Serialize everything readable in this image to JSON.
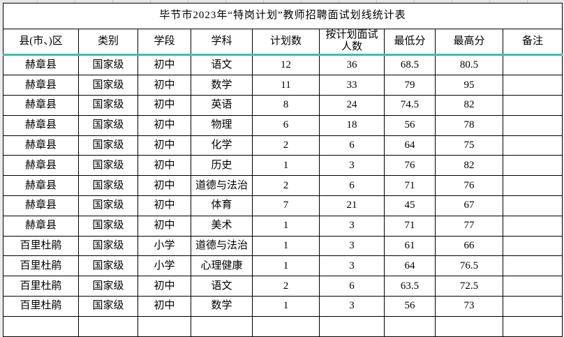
{
  "title": "毕节市2023年“特岗计划”教师招聘面试划线统计表",
  "colors": {
    "accent_teal": "#3FBDAE",
    "grid_border": "#000000",
    "cell_background": "#FFFFFF",
    "margin_background": "#ECECEC"
  },
  "table": {
    "header_keys": [
      "county",
      "category",
      "stage",
      "subject",
      "plan-count",
      "planned-interviewees",
      "min-score",
      "max-score",
      "remark"
    ],
    "headers": [
      "县(市、)区",
      "类别",
      "学段",
      "学科",
      "计划数",
      "按计划面试人数",
      "最低分",
      "最高分",
      "备注"
    ],
    "rows": [
      [
        "赫章县",
        "国家级",
        "初中",
        "语文",
        "12",
        "36",
        "68.5",
        "80.5",
        ""
      ],
      [
        "赫章县",
        "国家级",
        "初中",
        "数学",
        "11",
        "33",
        "79",
        "95",
        ""
      ],
      [
        "赫章县",
        "国家级",
        "初中",
        "英语",
        "8",
        "24",
        "74.5",
        "82",
        ""
      ],
      [
        "赫章县",
        "国家级",
        "初中",
        "物理",
        "6",
        "18",
        "56",
        "78",
        ""
      ],
      [
        "赫章县",
        "国家级",
        "初中",
        "化学",
        "2",
        "6",
        "64",
        "75",
        ""
      ],
      [
        "赫章县",
        "国家级",
        "初中",
        "历史",
        "1",
        "3",
        "76",
        "82",
        ""
      ],
      [
        "赫章县",
        "国家级",
        "初中",
        "道德与法治",
        "2",
        "6",
        "71",
        "76",
        ""
      ],
      [
        "赫章县",
        "国家级",
        "初中",
        "体育",
        "7",
        "21",
        "45",
        "67",
        ""
      ],
      [
        "赫章县",
        "国家级",
        "初中",
        "美术",
        "1",
        "3",
        "71",
        "77",
        ""
      ],
      [
        "百里杜鹃",
        "国家级",
        "小学",
        "道德与法治",
        "1",
        "3",
        "61",
        "66",
        ""
      ],
      [
        "百里杜鹃",
        "国家级",
        "小学",
        "心理健康",
        "1",
        "3",
        "64",
        "76.5",
        ""
      ],
      [
        "百里杜鹃",
        "国家级",
        "初中",
        "语文",
        "2",
        "6",
        "63.5",
        "72.5",
        ""
      ],
      [
        "百里杜鹃",
        "国家级",
        "初中",
        "数学",
        "1",
        "3",
        "56",
        "73",
        ""
      ]
    ]
  }
}
